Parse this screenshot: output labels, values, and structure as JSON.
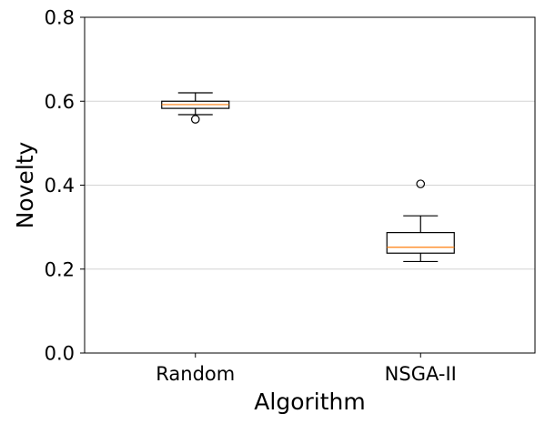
{
  "chart_data": {
    "type": "box",
    "xlabel": "Algorithm",
    "ylabel": "Novelty",
    "ylim": [
      0.0,
      0.8
    ],
    "yticks": [
      "0.0",
      "0.2",
      "0.4",
      "0.6",
      "0.8"
    ],
    "grid": "y",
    "categories": [
      "Random",
      "NSGA-II"
    ],
    "boxes": [
      {
        "category": "Random",
        "whisker_low": 0.568,
        "q1": 0.583,
        "median": 0.592,
        "q3": 0.6,
        "whisker_high": 0.62,
        "outliers": [
          0.557
        ]
      },
      {
        "category": "NSGA-II",
        "whisker_low": 0.218,
        "q1": 0.238,
        "median": 0.252,
        "q3": 0.287,
        "whisker_high": 0.327,
        "outliers": [
          0.403
        ]
      }
    ],
    "colors": {
      "box": "#000000",
      "median": "#ff7f0e",
      "grid": "#d3d3d3"
    }
  }
}
